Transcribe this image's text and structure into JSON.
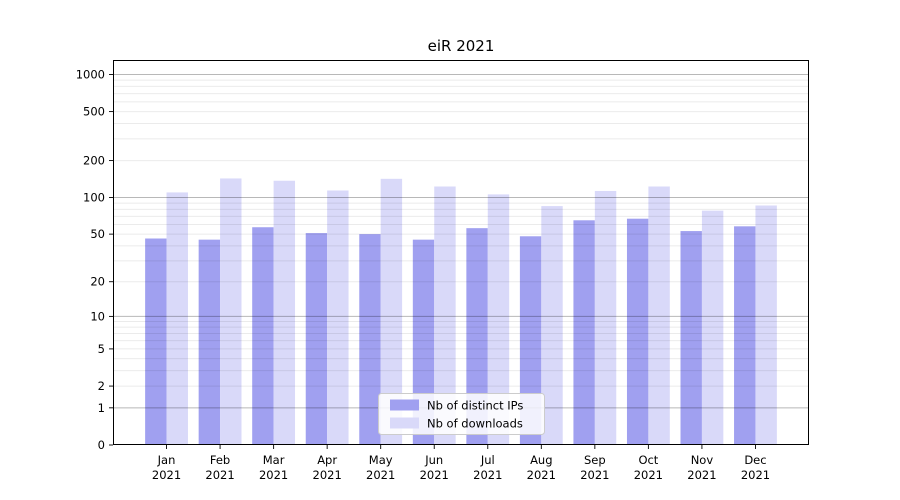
{
  "figure": {
    "background": "#ffffff",
    "title": "eiR 2021"
  },
  "chart_data": {
    "type": "bar",
    "title": "eiR 2021",
    "xlabel": "",
    "ylabel": "",
    "categories": [
      "Jan",
      "Feb",
      "Mar",
      "Apr",
      "May",
      "Jun",
      "Jul",
      "Aug",
      "Sep",
      "Oct",
      "Nov",
      "Dec"
    ],
    "category_year": "2021",
    "series": [
      {
        "name": "Nb of distinct IPs",
        "color": "#a0a0f0",
        "values": [
          46,
          45,
          57,
          51,
          50,
          45,
          56,
          48,
          65,
          67,
          53,
          58
        ]
      },
      {
        "name": "Nb of downloads",
        "color": "#d9d9f9",
        "values": [
          110,
          143,
          137,
          114,
          142,
          123,
          106,
          85,
          113,
          123,
          78,
          86
        ]
      }
    ],
    "yscale": "log1p",
    "ylim": [
      0,
      1310
    ],
    "yticks": [
      0,
      1,
      2,
      5,
      10,
      20,
      50,
      100,
      200,
      500,
      1000
    ],
    "grid": {
      "on": true,
      "major_values": [
        1,
        10,
        100,
        1000
      ],
      "minor_decades": [
        1,
        10,
        100
      ],
      "major_color": "rgba(0,0,0,0.28)",
      "minor_color": "rgba(0,0,0,0.08)"
    },
    "legend": {
      "position": "lower center",
      "border_color": "#cccccc",
      "background": "rgba(255,255,255,0.85)"
    },
    "axis_color": "#000000"
  }
}
